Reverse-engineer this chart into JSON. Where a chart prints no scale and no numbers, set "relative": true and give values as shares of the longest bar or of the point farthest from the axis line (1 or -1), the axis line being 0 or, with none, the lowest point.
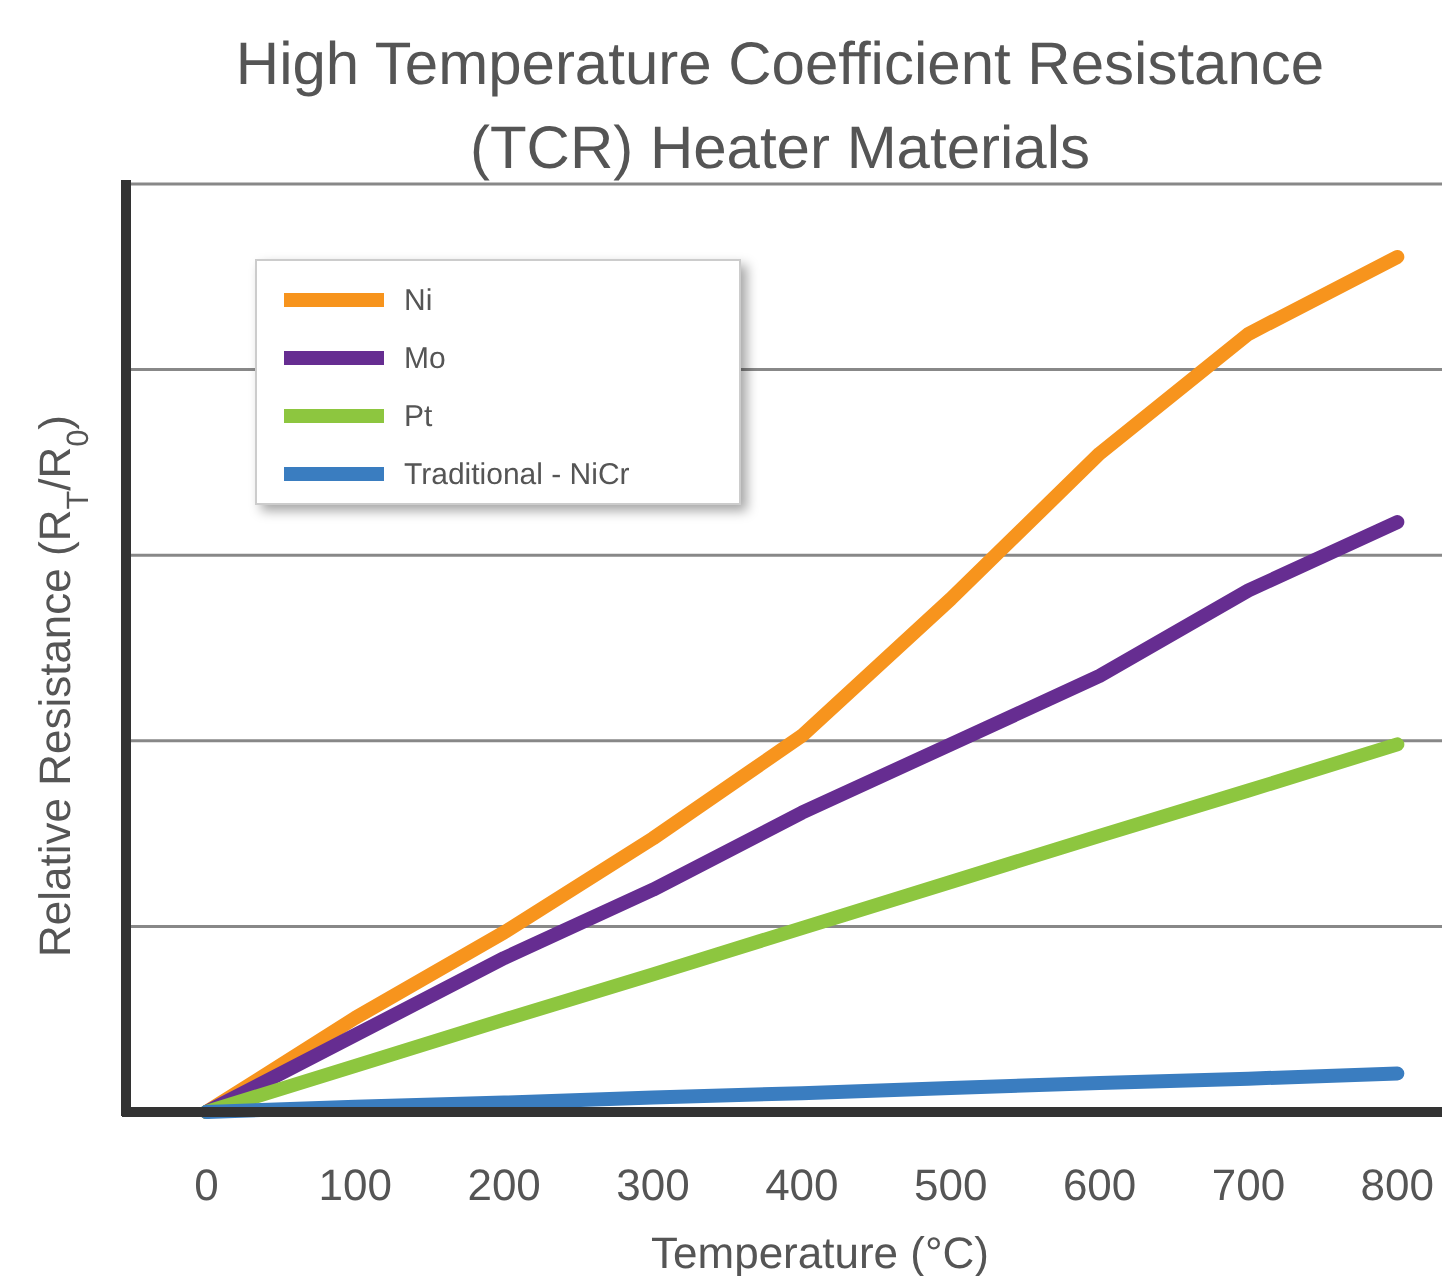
{
  "chart_data": {
    "type": "line",
    "title": "High Temperature Coefficient Resistance (TCR) Heater Materials",
    "xlabel": "Temperature (°C)",
    "ylabel": "Relative Resistance (R$_{T}$/R$_{0}$)",
    "relative": true,
    "xlim": [
      -54,
      830
    ],
    "xticks": [
      0,
      100,
      200,
      300,
      400,
      500,
      600,
      700,
      800
    ],
    "grid": "y",
    "legend": "top left",
    "line_style": "solid",
    "marker": "none",
    "x": [
      0,
      100,
      200,
      300,
      400,
      500,
      600,
      700,
      800
    ],
    "series": [
      {
        "name": "Ni",
        "color": "#f7941d",
        "values": [
          0,
          0.11,
          0.21,
          0.32,
          0.44,
          0.6,
          0.77,
          0.91,
          1
        ]
      },
      {
        "name": "Mo",
        "color": "#662d91",
        "values": [
          0,
          0.09,
          0.18,
          0.26,
          0.35,
          0.43,
          0.51,
          0.61,
          0.69
        ]
      },
      {
        "name": "Pt",
        "color": "#8dc63f",
        "values": [
          0,
          0.054,
          0.108,
          0.161,
          0.215,
          0.269,
          0.323,
          0.376,
          0.43
        ]
      },
      {
        "name": "Traditional - NiCr",
        "color": "#3a7dc0",
        "values": [
          0,
          0.006,
          0.011,
          0.017,
          0.022,
          0.028,
          0.034,
          0.039,
          0.045
        ]
      }
    ]
  }
}
